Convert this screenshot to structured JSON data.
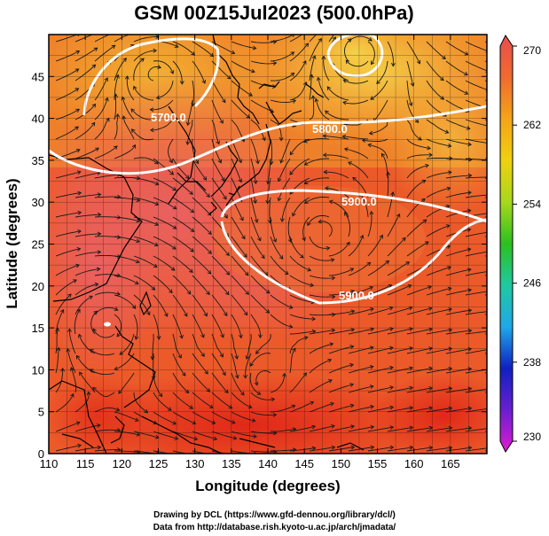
{
  "title": "GSM 00Z15Jul2023 (500.0hPa)",
  "xlabel": "Longitude (degrees)",
  "ylabel": "Latitude  (degrees)",
  "credits": {
    "line1": "Drawing by DCL (https://www.gfd-dennou.org/library/dcl/)",
    "line2": "Data from http://database.rish.kyoto-u.ac.jp/arch/jmadata/"
  },
  "map": {
    "lon_range": [
      110,
      170
    ],
    "lat_range": [
      0,
      50
    ],
    "x_ticks": [
      110,
      115,
      120,
      125,
      130,
      135,
      140,
      145,
      150,
      155,
      160,
      165
    ],
    "y_ticks": [
      0,
      5,
      10,
      15,
      20,
      25,
      30,
      35,
      40,
      45
    ],
    "grid": true,
    "contours": [
      {
        "label": "5700.0"
      },
      {
        "label": "5800.0"
      },
      {
        "label": "5900.0"
      },
      {
        "label": "5900.0"
      }
    ]
  },
  "colorbar": {
    "ticks": [
      230,
      238,
      246,
      254,
      262,
      270
    ],
    "range": [
      230,
      270
    ],
    "colors": [
      "#e01bd0",
      "#6a1fd0",
      "#1020c0",
      "#1fa8e8",
      "#20c8a0",
      "#2cc020",
      "#a8d81c",
      "#f0d010",
      "#f4a418",
      "#f06a30",
      "#e84d4d"
    ]
  }
}
